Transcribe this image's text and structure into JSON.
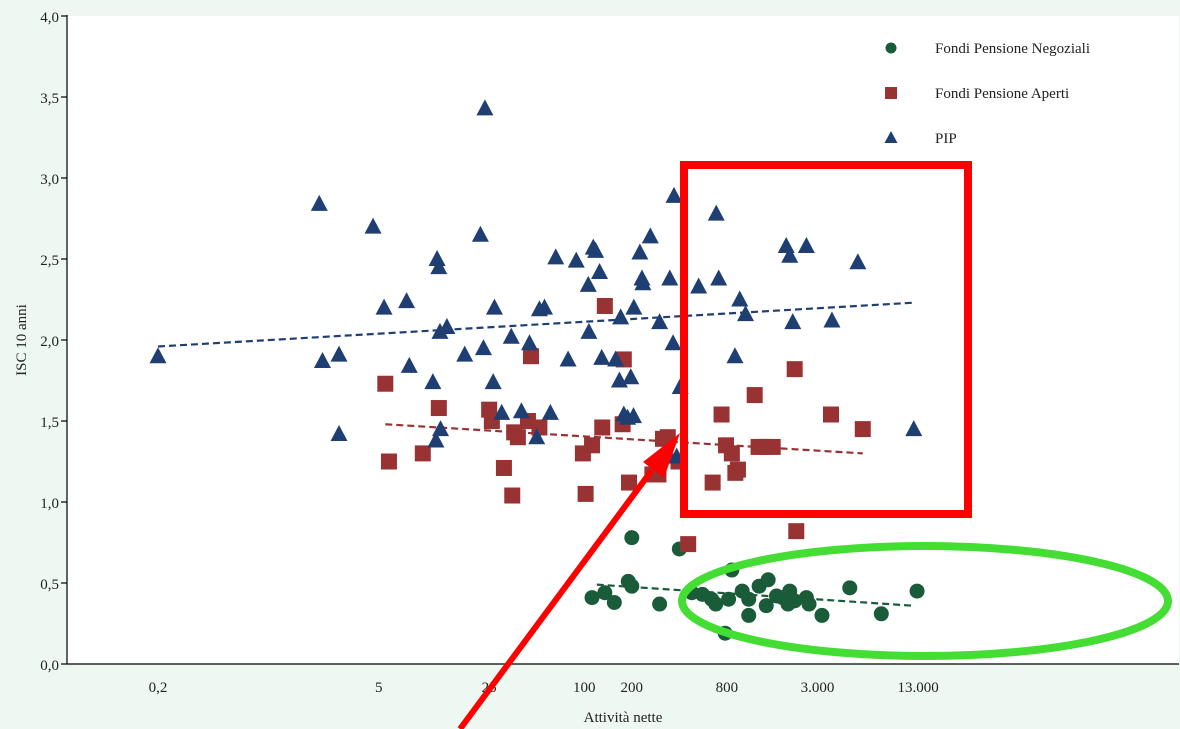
{
  "chart_data": {
    "type": "scatter",
    "xlabel": "Attività nette",
    "ylabel": "ISC 10 anni",
    "x_scale": "log",
    "xlim": [
      0.1,
      20000
    ],
    "ylim": [
      0,
      4
    ],
    "x_ticks": [
      {
        "value": 0.2,
        "label": "0,2"
      },
      {
        "value": 5,
        "label": "5"
      },
      {
        "value": 25,
        "label": "25"
      },
      {
        "value": 100,
        "label": "100"
      },
      {
        "value": 200,
        "label": "200"
      },
      {
        "value": 800,
        "label": "800"
      },
      {
        "value": 3000,
        "label": "3.000"
      },
      {
        "value": 13000,
        "label": "13.000"
      }
    ],
    "y_ticks": [
      {
        "value": 0,
        "label": "0,0"
      },
      {
        "value": 0.5,
        "label": "0,5"
      },
      {
        "value": 1,
        "label": "1,0"
      },
      {
        "value": 1.5,
        "label": "1,5"
      },
      {
        "value": 2,
        "label": "2,0"
      },
      {
        "value": 2.5,
        "label": "2,5"
      },
      {
        "value": 3,
        "label": "3,0"
      },
      {
        "value": 3.5,
        "label": "3,5"
      },
      {
        "value": 4,
        "label": "4,0"
      }
    ],
    "grid": false,
    "legend_position": "top-right",
    "series": [
      {
        "name": "Fondi Pensione Negoziali",
        "marker": "circle",
        "color": "#1a5c3a",
        "points": [
          [
            112,
            0.41
          ],
          [
            135,
            0.44
          ],
          [
            155,
            0.38
          ],
          [
            190,
            0.51
          ],
          [
            200,
            0.48
          ],
          [
            200,
            0.78
          ],
          [
            300,
            0.37
          ],
          [
            400,
            0.71
          ],
          [
            480,
            0.44
          ],
          [
            560,
            0.43
          ],
          [
            640,
            0.4
          ],
          [
            680,
            0.37
          ],
          [
            780,
            0.19
          ],
          [
            820,
            0.4
          ],
          [
            860,
            0.58
          ],
          [
            1000,
            0.45
          ],
          [
            1100,
            0.3
          ],
          [
            1100,
            0.4
          ],
          [
            1280,
            0.48
          ],
          [
            1420,
            0.36
          ],
          [
            1460,
            0.52
          ],
          [
            1650,
            0.42
          ],
          [
            1800,
            0.41
          ],
          [
            1950,
            0.37
          ],
          [
            2000,
            0.45
          ],
          [
            2150,
            0.39
          ],
          [
            2550,
            0.41
          ],
          [
            2650,
            0.37
          ],
          [
            3200,
            0.3
          ],
          [
            4800,
            0.47
          ],
          [
            7600,
            0.31
          ],
          [
            12800,
            0.45
          ]
        ],
        "trend": [
          [
            120,
            0.49
          ],
          [
            12000,
            0.36
          ]
        ]
      },
      {
        "name": "Fondi Pensione Aperti",
        "marker": "square",
        "color": "#993333",
        "points": [
          [
            5.8,
            1.25
          ],
          [
            5.5,
            1.73
          ],
          [
            9.5,
            1.3
          ],
          [
            12,
            1.58
          ],
          [
            25,
            1.57
          ],
          [
            26,
            1.5
          ],
          [
            31,
            1.21
          ],
          [
            35,
            1.04
          ],
          [
            36,
            1.43
          ],
          [
            38,
            1.4
          ],
          [
            44,
            1.5
          ],
          [
            46,
            1.9
          ],
          [
            52,
            1.46
          ],
          [
            98,
            1.3
          ],
          [
            102,
            1.05
          ],
          [
            112,
            1.35
          ],
          [
            130,
            1.46
          ],
          [
            135,
            2.21
          ],
          [
            175,
            1.48
          ],
          [
            178,
            1.88
          ],
          [
            192,
            1.12
          ],
          [
            270,
            1.17
          ],
          [
            295,
            1.17
          ],
          [
            315,
            1.39
          ],
          [
            338,
            1.4
          ],
          [
            395,
            1.25
          ],
          [
            455,
            0.74
          ],
          [
            650,
            1.12
          ],
          [
            740,
            1.54
          ],
          [
            790,
            1.35
          ],
          [
            860,
            1.3
          ],
          [
            905,
            1.18
          ],
          [
            940,
            1.2
          ],
          [
            1200,
            1.66
          ],
          [
            1270,
            1.34
          ],
          [
            1360,
            1.34
          ],
          [
            1560,
            1.34
          ],
          [
            2150,
            1.82
          ],
          [
            2200,
            0.82
          ],
          [
            3650,
            1.54
          ],
          [
            5800,
            1.45
          ]
        ],
        "trend": [
          [
            5.5,
            1.48
          ],
          [
            5800,
            1.3
          ]
        ]
      },
      {
        "name": "PIP",
        "marker": "triangle",
        "color": "#1f3f73",
        "points": [
          [
            0.2,
            1.9
          ],
          [
            2.1,
            2.84
          ],
          [
            2.2,
            1.87
          ],
          [
            2.8,
            1.42
          ],
          [
            2.8,
            1.91
          ],
          [
            4.6,
            2.7
          ],
          [
            5.4,
            2.2
          ],
          [
            7.5,
            2.24
          ],
          [
            7.8,
            1.84
          ],
          [
            11,
            1.74
          ],
          [
            11.5,
            1.38
          ],
          [
            11.7,
            2.5
          ],
          [
            12,
            2.45
          ],
          [
            12.2,
            2.05
          ],
          [
            12.3,
            1.45
          ],
          [
            13.5,
            2.08
          ],
          [
            17.5,
            1.91
          ],
          [
            22,
            2.65
          ],
          [
            23,
            1.95
          ],
          [
            23.5,
            3.43
          ],
          [
            26.5,
            1.74
          ],
          [
            27,
            2.2
          ],
          [
            30,
            1.55
          ],
          [
            34.5,
            2.02
          ],
          [
            40,
            1.56
          ],
          [
            45,
            1.98
          ],
          [
            50,
            1.4
          ],
          [
            52,
            2.19
          ],
          [
            56,
            2.2
          ],
          [
            61,
            1.55
          ],
          [
            66,
            2.51
          ],
          [
            79,
            1.88
          ],
          [
            89,
            2.49
          ],
          [
            106,
            2.34
          ],
          [
            107,
            2.05
          ],
          [
            114,
            2.57
          ],
          [
            118,
            2.55
          ],
          [
            125,
            2.42
          ],
          [
            129,
            1.89
          ],
          [
            158,
            1.88
          ],
          [
            167,
            1.75
          ],
          [
            170,
            2.14
          ],
          [
            178,
            1.54
          ],
          [
            188,
            1.52
          ],
          [
            197,
            1.77
          ],
          [
            205,
            1.53
          ],
          [
            206,
            2.2
          ],
          [
            225,
            2.54
          ],
          [
            232,
            2.38
          ],
          [
            235,
            2.35
          ],
          [
            262,
            2.64
          ],
          [
            300,
            2.11
          ],
          [
            348,
            2.38
          ],
          [
            365,
            1.98
          ],
          [
            370,
            2.89
          ],
          [
            385,
            1.28
          ],
          [
            405,
            1.71
          ],
          [
            530,
            2.33
          ],
          [
            685,
            2.78
          ],
          [
            710,
            2.38
          ],
          [
            900,
            1.9
          ],
          [
            965,
            2.25
          ],
          [
            1050,
            2.16
          ],
          [
            1900,
            2.58
          ],
          [
            2000,
            2.52
          ],
          [
            2090,
            2.11
          ],
          [
            2550,
            2.58
          ],
          [
            3700,
            2.12
          ],
          [
            5400,
            2.48
          ],
          [
            12200,
            1.45
          ]
        ],
        "trend": [
          [
            0.2,
            1.96
          ],
          [
            12000,
            2.23
          ]
        ]
      }
    ]
  }
}
